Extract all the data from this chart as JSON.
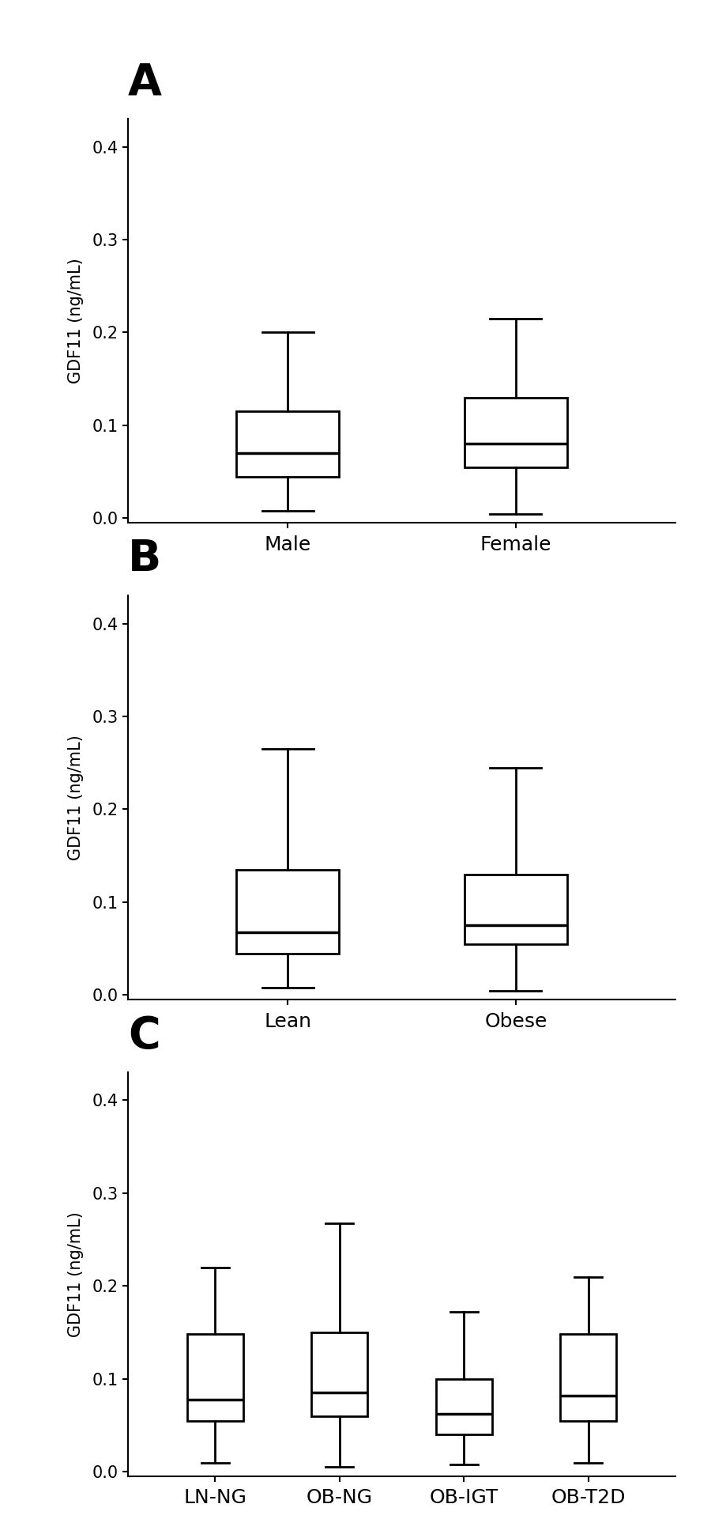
{
  "panel_A": {
    "label": "A",
    "categories": [
      "Male",
      "Female"
    ],
    "boxes": [
      {
        "median": 0.07,
        "q1": 0.045,
        "q3": 0.115,
        "whislo": 0.008,
        "whishi": 0.2
      },
      {
        "median": 0.08,
        "q1": 0.055,
        "q3": 0.13,
        "whislo": 0.005,
        "whishi": 0.215
      }
    ],
    "ylabel": "GDF11 (ng/mL)",
    "ylim": [
      -0.005,
      0.43
    ],
    "yticks": [
      0.0,
      0.1,
      0.2,
      0.3,
      0.4
    ]
  },
  "panel_B": {
    "label": "B",
    "categories": [
      "Lean",
      "Obese"
    ],
    "boxes": [
      {
        "median": 0.068,
        "q1": 0.045,
        "q3": 0.135,
        "whislo": 0.008,
        "whishi": 0.265
      },
      {
        "median": 0.075,
        "q1": 0.055,
        "q3": 0.13,
        "whislo": 0.005,
        "whishi": 0.245
      }
    ],
    "ylabel": "GDF11 (ng/mL)",
    "ylim": [
      -0.005,
      0.43
    ],
    "yticks": [
      0.0,
      0.1,
      0.2,
      0.3,
      0.4
    ]
  },
  "panel_C": {
    "label": "C",
    "categories": [
      "LN-NG",
      "OB-NG",
      "OB-IGT",
      "OB-T2D"
    ],
    "boxes": [
      {
        "median": 0.078,
        "q1": 0.055,
        "q3": 0.148,
        "whislo": 0.01,
        "whishi": 0.22
      },
      {
        "median": 0.085,
        "q1": 0.06,
        "q3": 0.15,
        "whislo": 0.005,
        "whishi": 0.268
      },
      {
        "median": 0.062,
        "q1": 0.04,
        "q3": 0.1,
        "whislo": 0.008,
        "whishi": 0.172
      },
      {
        "median": 0.082,
        "q1": 0.055,
        "q3": 0.148,
        "whislo": 0.01,
        "whishi": 0.21
      }
    ],
    "ylabel": "GDF11 (ng/mL)",
    "ylim": [
      -0.005,
      0.43
    ],
    "yticks": [
      0.0,
      0.1,
      0.2,
      0.3,
      0.4
    ]
  },
  "box_color": "#ffffff",
  "box_edgecolor": "#000000",
  "linewidth": 2.0,
  "whisker_linewidth": 2.0,
  "cap_linewidth": 2.0,
  "median_linewidth": 2.5,
  "box_width": 0.45,
  "xtick_fontsize": 18,
  "ytick_fontsize": 15,
  "ylabel_fontsize": 15,
  "panel_label_fontsize": 40,
  "background_color": "#ffffff",
  "figure_width": 9.0,
  "figure_height": 19.45,
  "dpi": 100
}
